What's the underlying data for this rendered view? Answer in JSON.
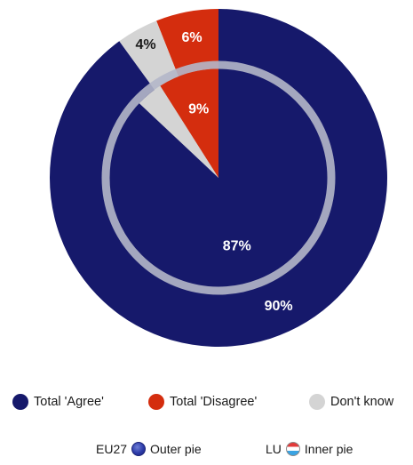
{
  "chart_data": {
    "type": "pie",
    "categories": [
      "Total 'Agree'",
      "Total 'Disagree'",
      "Don't know"
    ],
    "series": [
      {
        "key": "outer",
        "values": [
          90,
          6,
          4
        ]
      },
      {
        "key": "inner",
        "values": [
          87,
          9,
          4
        ]
      }
    ],
    "value_labels": {
      "outer": [
        "90%",
        "6%",
        "4%"
      ],
      "inner": [
        "87%",
        "9%",
        ""
      ]
    },
    "colors": [
      "#16196b",
      "#d42d0e",
      "#d4d4d4"
    ],
    "ring_color": "#b4b7c9",
    "legend_placement": "bottom"
  },
  "legend": {
    "items": [
      "Total 'Agree'",
      "Total 'Disagree'",
      "Don't know"
    ]
  },
  "pie_key": {
    "outer_region": "EU27",
    "outer_label": "Outer pie",
    "inner_region": "LU",
    "inner_label": "Inner pie"
  }
}
